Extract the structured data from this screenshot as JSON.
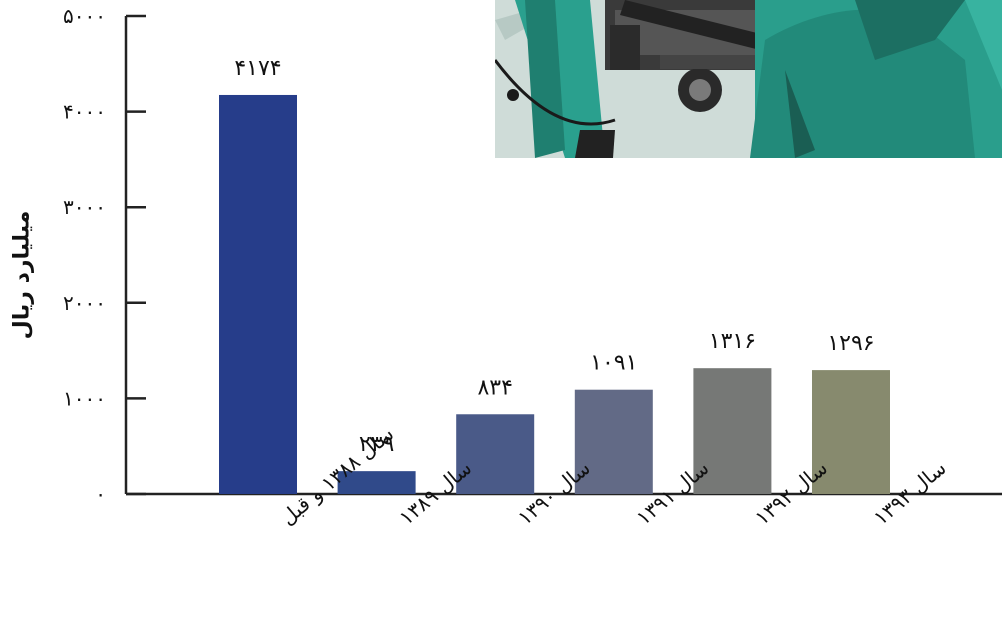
{
  "chart_data": {
    "type": "bar",
    "title": "",
    "xlabel": "",
    "ylabel": "میلیارد ریال",
    "ylim": [
      0,
      5000
    ],
    "yticks": [
      0,
      1000,
      2000,
      3000,
      4000,
      5000
    ],
    "ytick_labels": [
      "۰",
      "۱۰۰۰",
      "۲۰۰۰",
      "۳۰۰۰",
      "۴۰۰۰",
      "۵۰۰۰"
    ],
    "categories": [
      "سال ۱۳۸۸ و قبل",
      "سال ۱۳۸۹",
      "سال ۱۳۹۰",
      "سال ۱۳۹۱",
      "سال ۱۳۹۲",
      "سال ۱۳۹۳"
    ],
    "values": [
      4174,
      239,
      834,
      1091,
      1316,
      1296
    ],
    "value_labels": [
      "۴۱۷۴",
      "۲۳۹",
      "۸۳۴",
      "۱۰۹۱",
      "۱۳۱۶",
      "۱۲۹۶"
    ],
    "bar_colors": [
      "#263d8a",
      "#304a8a",
      "#4a5a88",
      "#626a86",
      "#767876",
      "#878a6e"
    ],
    "grid": false,
    "legend": "none"
  },
  "inset_photo": {
    "description_icon": "hospital-scene-photo"
  }
}
